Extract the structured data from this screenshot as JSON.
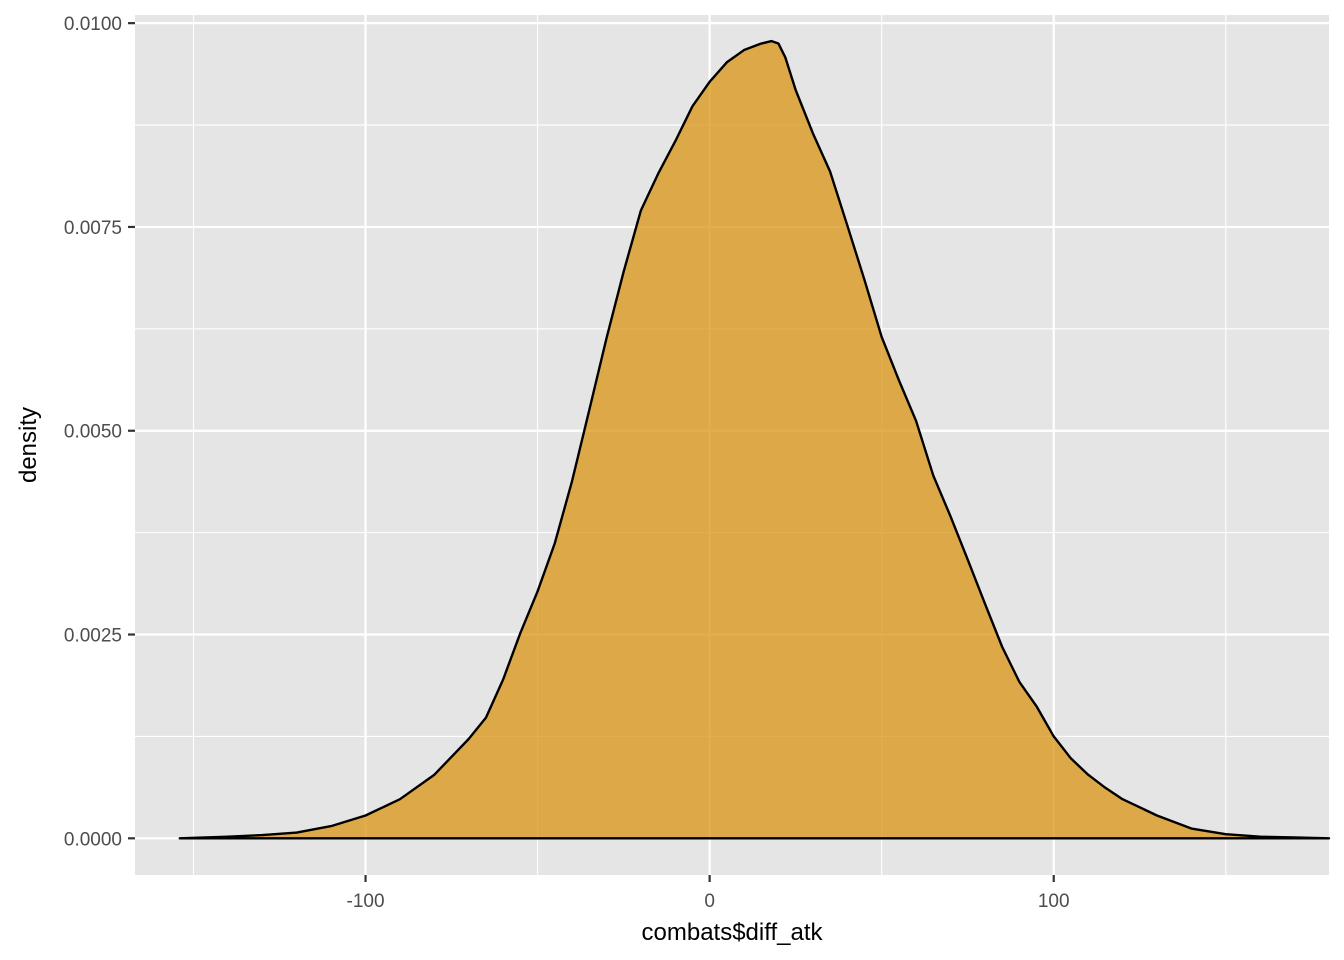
{
  "colors": {
    "panel_background": "#e5e5e5",
    "grid": "#ffffff",
    "fill": "#d99413",
    "outline": "#000000",
    "tick_text": "#4d4d4d"
  },
  "chart_data": {
    "type": "area",
    "subtype": "density",
    "title": "",
    "xlabel": "combats$diff_atk",
    "ylabel": "density",
    "xlim": [
      -167,
      180
    ],
    "ylim": [
      -0.00045,
      0.0101
    ],
    "x_ticks": [
      -100,
      0,
      100
    ],
    "x_tick_labels": [
      "-100",
      "0",
      "100"
    ],
    "y_ticks": [
      0,
      0.0025,
      0.005,
      0.0075,
      0.01
    ],
    "y_tick_labels": [
      "0.0000",
      "0.0025",
      "0.0050",
      "0.0075",
      "0.0100"
    ],
    "grid": true,
    "legend": "none",
    "series": [
      {
        "x": [
          -154,
          -140,
          -130,
          -120,
          -110,
          -100,
          -90,
          -80,
          -75,
          -70,
          -65,
          -60,
          -55,
          -50,
          -45,
          -40,
          -35,
          -30,
          -25,
          -20,
          -15,
          -10,
          -5,
          0,
          5,
          10,
          15,
          18,
          20,
          22,
          25,
          30,
          35,
          40,
          45,
          50,
          55,
          60,
          65,
          70,
          75,
          80,
          85,
          90,
          95,
          100,
          105,
          110,
          115,
          120,
          130,
          140,
          150,
          160,
          170,
          180
        ],
        "y": [
          0.0,
          2e-05,
          4e-05,
          7e-05,
          0.00015,
          0.00028,
          0.00048,
          0.00078,
          0.001,
          0.00122,
          0.00148,
          0.00195,
          0.00252,
          0.00303,
          0.00362,
          0.00438,
          0.00525,
          0.00613,
          0.00695,
          0.0077,
          0.00815,
          0.00855,
          0.00898,
          0.00928,
          0.00952,
          0.00967,
          0.00975,
          0.00978,
          0.00975,
          0.00958,
          0.00918,
          0.00865,
          0.00818,
          0.00752,
          0.00685,
          0.00615,
          0.00562,
          0.00512,
          0.00445,
          0.00395,
          0.00342,
          0.00288,
          0.00235,
          0.00192,
          0.00162,
          0.00125,
          0.00098,
          0.00078,
          0.00062,
          0.00048,
          0.00028,
          0.00012,
          5e-05,
          2e-05,
          1e-05,
          0.0
        ]
      }
    ]
  }
}
